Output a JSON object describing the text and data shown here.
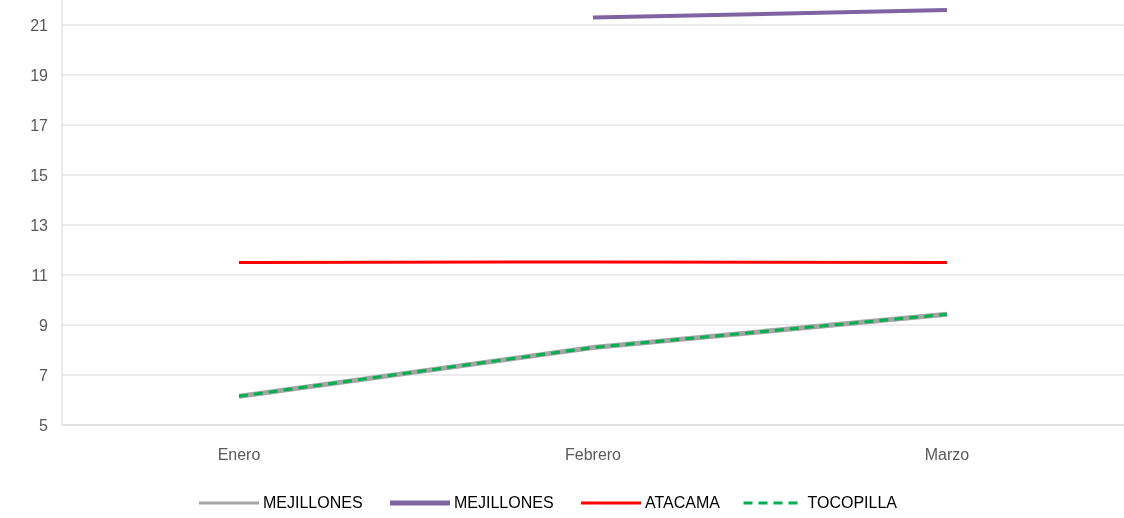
{
  "chart_data": {
    "type": "line",
    "categories": [
      "Enero",
      "Febrero",
      "Marzo"
    ],
    "series": [
      {
        "name": "MEJILLONES",
        "color": "#a5a5a5",
        "values": [
          6.15,
          8.1,
          9.43
        ],
        "line_style": "solid"
      },
      {
        "name": "MEJILLONES",
        "color": "#8064a2",
        "values": [
          null,
          21.3,
          21.6
        ],
        "line_style": "solid"
      },
      {
        "name": "ATACAMA",
        "color": "#ff0000",
        "values": [
          11.5,
          11.52,
          11.5
        ],
        "line_style": "solid"
      },
      {
        "name": "TOCOPILLA",
        "color": "#00b050",
        "values": [
          6.15,
          8.1,
          9.43
        ],
        "line_style": "dashed"
      }
    ],
    "ylim": [
      5,
      22
    ],
    "yticks": [
      5,
      7,
      9,
      11,
      13,
      15,
      17,
      19,
      21
    ],
    "grid": "y",
    "legend": "bottom",
    "marker": "none"
  }
}
